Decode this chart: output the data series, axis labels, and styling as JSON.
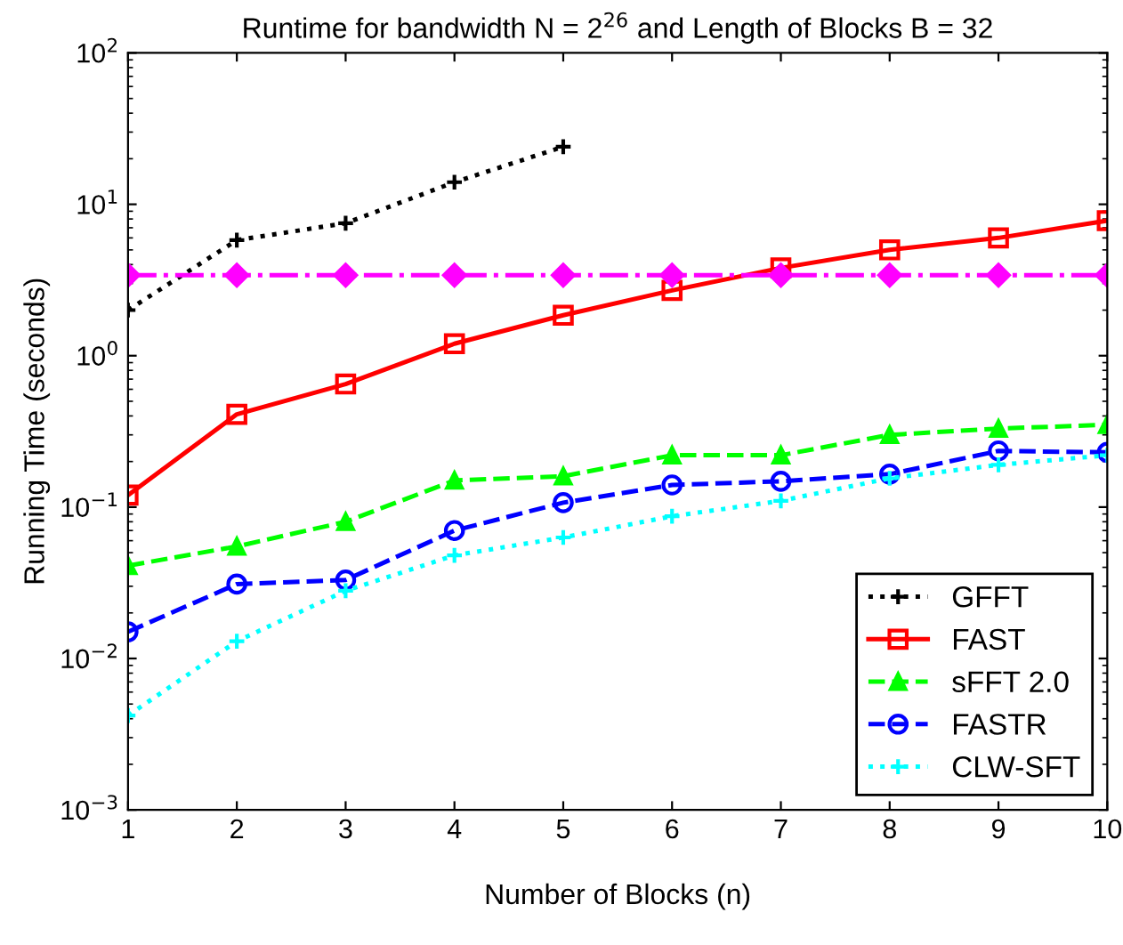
{
  "chart_data": {
    "type": "line",
    "title": "Runtime for bandwidth N = 2$^{26}$ and Length of Blocks B = 32",
    "xlabel": "Number of Blocks (n)",
    "ylabel": "Running Time (seconds)",
    "log": "y",
    "grid": false,
    "legend": "bottom right",
    "xlim": [
      1,
      10
    ],
    "xticks": [
      1,
      2,
      3,
      4,
      5,
      6,
      7,
      8,
      9,
      10
    ],
    "ylim": [
      0.001,
      100
    ],
    "yticks": [
      {
        "value": 0.001,
        "label": "10$^{−3}$"
      },
      {
        "value": 0.01,
        "label": "10$^{−2}$"
      },
      {
        "value": 0.1,
        "label": "10$^{−1}$"
      },
      {
        "value": 1,
        "label": "10$^{0}$"
      },
      {
        "value": 10,
        "label": "10$^{1}$"
      },
      {
        "value": 100,
        "label": "10$^{2}$"
      }
    ],
    "series": [
      {
        "name": "GFFT",
        "color": "#000000",
        "marker": "cross",
        "line_style": "dotted",
        "x": [
          1,
          2,
          3,
          4,
          5
        ],
        "values": [
          2,
          5.8,
          7.5,
          14,
          24
        ]
      },
      {
        "name": "FAST",
        "color": "#ff0000",
        "marker": "square",
        "line_style": "solid",
        "x": [
          1,
          2,
          3,
          4,
          5,
          6,
          7,
          8,
          9,
          10
        ],
        "values": [
          0.12,
          0.41,
          0.65,
          1.2,
          1.85,
          2.7,
          3.8,
          5,
          6,
          7.8
        ]
      },
      {
        "color": "#ff00ff",
        "marker": "diamond",
        "line_style": "dashdot",
        "x": [
          1,
          2,
          3,
          4,
          5,
          6,
          7,
          8,
          9,
          10
        ],
        "values": [
          3.4,
          3.4,
          3.4,
          3.4,
          3.4,
          3.4,
          3.4,
          3.4,
          3.4,
          3.4
        ]
      },
      {
        "name": "sFFT 2.0",
        "color": "#00ff00",
        "marker": "triangle",
        "line_style": "dashed",
        "x": [
          1,
          2,
          3,
          4,
          5,
          6,
          7,
          8,
          9,
          10
        ],
        "values": [
          0.041,
          0.055,
          0.08,
          0.15,
          0.16,
          0.22,
          0.22,
          0.3,
          0.33,
          0.35
        ]
      },
      {
        "name": "FASTR",
        "color": "#0000ff",
        "marker": "circle",
        "line_style": "dashed",
        "x": [
          1,
          2,
          3,
          4,
          5,
          6,
          7,
          8,
          9,
          10
        ],
        "values": [
          0.015,
          0.031,
          0.033,
          0.07,
          0.107,
          0.14,
          0.148,
          0.165,
          0.235,
          0.23
        ]
      },
      {
        "name": "CLW-SFT",
        "color": "#00ffff",
        "marker": "cross",
        "line_style": "dotted",
        "x": [
          1,
          2,
          3,
          4,
          5,
          6,
          7,
          8,
          9,
          10
        ],
        "values": [
          0.0042,
          0.013,
          0.028,
          0.048,
          0.063,
          0.087,
          0.11,
          0.155,
          0.19,
          0.22
        ]
      }
    ]
  }
}
